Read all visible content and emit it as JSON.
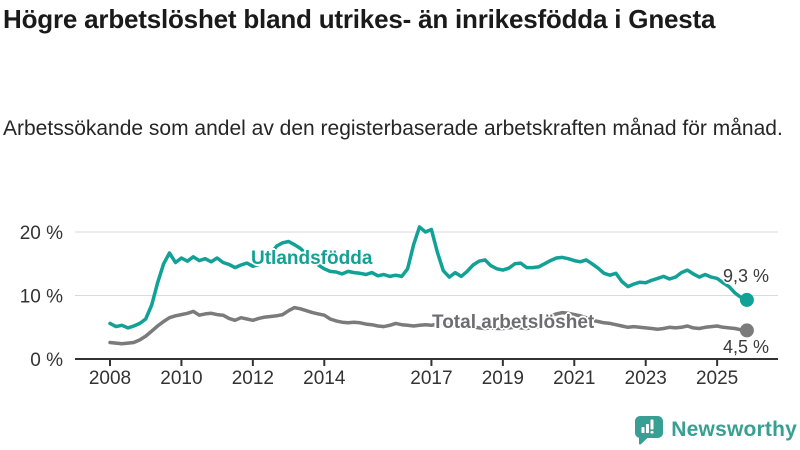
{
  "header": {
    "title": "Högre arbetslöshet bland utrikes- än inrikesfödda i Gnesta",
    "subtitle": "Arbetssökande som andel av den registerbaserade arbetskraften månad för månad."
  },
  "chart_data": {
    "type": "line",
    "title": "Högre arbetslöshet bland utrikes- än inrikesfödda i Gnesta",
    "subtitle": "Arbetssökande som andel av den registerbaserade arbetskraften månad för månad.",
    "x_start_year": 2008,
    "x_step_months": 2,
    "x_ticks": [
      2008,
      2010,
      2012,
      2014,
      2017,
      2019,
      2021,
      2023,
      2025
    ],
    "y_ticks": [
      {
        "value": 0,
        "label": "0 %"
      },
      {
        "value": 10,
        "label": "10 %"
      },
      {
        "value": 20,
        "label": "20 %"
      }
    ],
    "ylim": [
      0,
      22
    ],
    "grid": "horizontal",
    "colors": {
      "accent_teal": "#12a196",
      "neutral_gray": "#7b7b7b",
      "gridline": "#dadada",
      "axis": "#333333"
    },
    "series": [
      {
        "name": "Utlandsfödda",
        "color": "#12a196",
        "end_label": "9,3 %",
        "end_value": 9.3,
        "values": [
          5.6,
          5.1,
          5.3,
          4.9,
          5.2,
          5.6,
          6.3,
          8.5,
          12.0,
          15.0,
          16.7,
          15.2,
          15.9,
          15.4,
          16.1,
          15.5,
          15.8,
          15.3,
          15.9,
          15.2,
          14.9,
          14.4,
          14.8,
          15.1,
          14.6,
          14.9,
          15.6,
          16.5,
          17.8,
          18.3,
          18.5,
          18.0,
          17.4,
          16.5,
          15.6,
          14.8,
          14.2,
          13.8,
          13.7,
          13.4,
          13.8,
          13.6,
          13.5,
          13.3,
          13.6,
          13.1,
          13.3,
          13.0,
          13.2,
          13.0,
          14.2,
          18.0,
          20.8,
          20.0,
          20.4,
          16.8,
          13.9,
          12.9,
          13.6,
          13.0,
          13.8,
          14.8,
          15.4,
          15.6,
          14.7,
          14.2,
          14.0,
          14.3,
          15.0,
          15.1,
          14.4,
          14.4,
          14.5,
          15.0,
          15.5,
          15.9,
          16.0,
          15.8,
          15.5,
          15.3,
          15.6,
          15.0,
          14.3,
          13.5,
          13.2,
          13.5,
          12.2,
          11.4,
          11.8,
          12.1,
          12.0,
          12.4,
          12.7,
          13.0,
          12.6,
          12.9,
          13.6,
          14.0,
          13.4,
          12.9,
          13.3,
          12.9,
          12.7,
          12.0,
          11.4,
          10.4,
          9.7,
          9.3
        ]
      },
      {
        "name": "Total arbetslöshet",
        "color": "#7b7b7b",
        "end_label": "4,5 %",
        "end_value": 4.5,
        "values": [
          2.6,
          2.5,
          2.4,
          2.5,
          2.6,
          3.0,
          3.6,
          4.4,
          5.2,
          5.9,
          6.5,
          6.8,
          7.0,
          7.2,
          7.5,
          6.9,
          7.1,
          7.2,
          7.0,
          6.9,
          6.4,
          6.1,
          6.5,
          6.3,
          6.1,
          6.4,
          6.6,
          6.7,
          6.8,
          7.0,
          7.6,
          8.1,
          7.9,
          7.6,
          7.3,
          7.1,
          6.9,
          6.3,
          6.0,
          5.8,
          5.7,
          5.8,
          5.7,
          5.5,
          5.4,
          5.2,
          5.1,
          5.3,
          5.6,
          5.4,
          5.3,
          5.2,
          5.3,
          5.4,
          5.3,
          5.5,
          5.6,
          5.4,
          5.2,
          5.1,
          5.0,
          5.1,
          4.9,
          4.8,
          4.9,
          4.8,
          4.8,
          4.9,
          5.0,
          4.9,
          4.8,
          5.0,
          5.1,
          5.6,
          6.8,
          7.1,
          7.3,
          7.2,
          7.0,
          6.8,
          6.5,
          6.1,
          5.9,
          5.7,
          5.6,
          5.4,
          5.2,
          5.0,
          5.1,
          5.0,
          4.9,
          4.8,
          4.7,
          4.8,
          5.0,
          4.9,
          5.0,
          5.2,
          4.9,
          4.8,
          5.0,
          5.1,
          5.2,
          5.0,
          4.9,
          4.8,
          4.6,
          4.5
        ]
      }
    ]
  },
  "footer": {
    "brand": "Newsworthy",
    "brand_color": "#38a093",
    "logo_icon": "bar-chart-speech-bubble"
  }
}
